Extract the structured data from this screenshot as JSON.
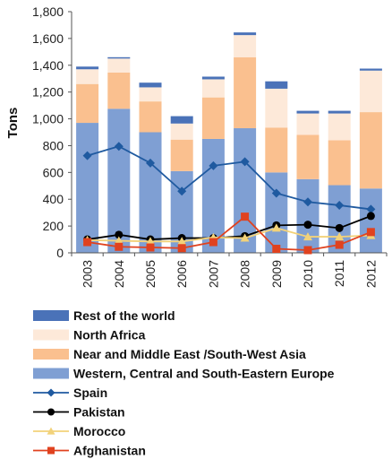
{
  "chart_data": {
    "type": "bar",
    "stacked": true,
    "ylabel": "Tons",
    "ylim": [
      0,
      1800
    ],
    "ytick_step": 200,
    "ytick_labels": [
      "0",
      "200",
      "400",
      "600",
      "800",
      "1,000",
      "1,200",
      "1,400",
      "1,600",
      "1,800"
    ],
    "grid": false,
    "legend_position": "bottom",
    "categories": [
      "2003",
      "2004",
      "2005",
      "2006",
      "2007",
      "2008",
      "2009",
      "2010",
      "2011",
      "2012"
    ],
    "bar_series": [
      {
        "name": "Western, Central and South-Eastern Europe",
        "color": "#7f9fd3",
        "values": [
          970,
          1075,
          900,
          610,
          850,
          930,
          600,
          550,
          505,
          480
        ]
      },
      {
        "name": "Near and Middle East /South-West Asia",
        "color": "#fac08f",
        "values": [
          290,
          270,
          230,
          235,
          310,
          530,
          335,
          330,
          335,
          570
        ]
      },
      {
        "name": "North Africa",
        "color": "#fde9d9",
        "values": [
          110,
          105,
          105,
          120,
          135,
          165,
          290,
          160,
          200,
          310
        ]
      },
      {
        "name": "Rest of the world",
        "color": "#4a72b8",
        "values": [
          20,
          10,
          35,
          55,
          20,
          20,
          55,
          20,
          20,
          15
        ]
      }
    ],
    "line_series": [
      {
        "name": "Spain",
        "color": "#1f5aa0",
        "marker": "diamond",
        "values": [
          725,
          795,
          670,
          460,
          650,
          680,
          445,
          380,
          355,
          325
        ]
      },
      {
        "name": "Pakistan",
        "color": "#000000",
        "marker": "circle",
        "values": [
          100,
          135,
          100,
          110,
          110,
          125,
          205,
          210,
          185,
          275
        ]
      },
      {
        "name": "Morocco",
        "color": "#f2d27a",
        "marker": "triangle",
        "values": [
          95,
          90,
          85,
          85,
          115,
          110,
          185,
          120,
          120,
          130
        ]
      },
      {
        "name": "Afghanistan",
        "color": "#e0421f",
        "marker": "square",
        "values": [
          80,
          45,
          40,
          35,
          80,
          270,
          30,
          20,
          60,
          155
        ]
      }
    ]
  },
  "legend": [
    {
      "label": "Rest of the world",
      "kind": "bar",
      "color": "#4a72b8"
    },
    {
      "label": "North Africa",
      "kind": "bar",
      "color": "#fde9d9"
    },
    {
      "label": "Near and Middle East /South-West Asia",
      "kind": "bar",
      "color": "#fac08f"
    },
    {
      "label": "Western, Central and South-Eastern Europe",
      "kind": "bar",
      "color": "#7f9fd3"
    },
    {
      "label": "Spain",
      "kind": "line",
      "marker": "diamond",
      "color": "#1f5aa0"
    },
    {
      "label": "Pakistan",
      "kind": "line",
      "marker": "circle",
      "color": "#000000"
    },
    {
      "label": "Morocco",
      "kind": "line",
      "marker": "triangle",
      "color": "#f2d27a"
    },
    {
      "label": "Afghanistan",
      "kind": "line",
      "marker": "square",
      "color": "#e0421f"
    }
  ]
}
